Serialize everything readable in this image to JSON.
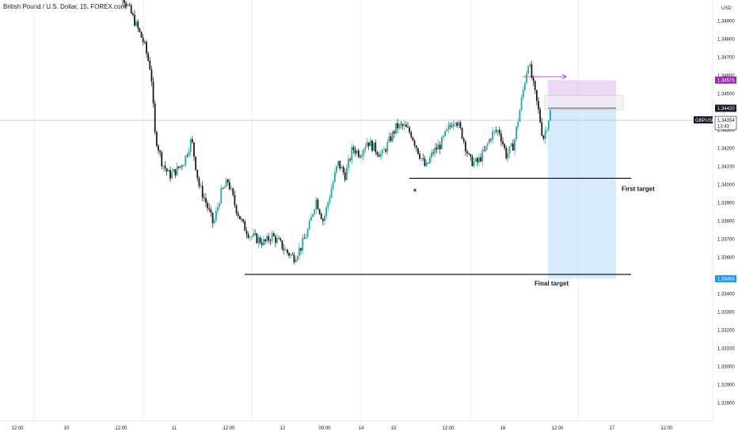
{
  "header": {
    "title": "British Pound / U.S. Dollar, 15, FOREX.com"
  },
  "colors": {
    "up": "#26a69a",
    "down": "#1a1a1a",
    "grid": "#e9ecef",
    "crosshair": "#b2b5be",
    "risk_zone": "#e1bee7",
    "target_zone": "#bbdefb",
    "level_line": "#000000",
    "tag_purple": "#9c27b0",
    "tag_black": "#131722",
    "tag_blue": "#2196f3"
  },
  "chart_data": {
    "type": "candlestick",
    "symbol": "GBPUSD",
    "timeframe": "15",
    "y_axis": {
      "unit": "USD",
      "range": [
        1.3269,
        1.3505
      ],
      "ticks": [
        "1.35000",
        "1.34900",
        "1.34800",
        "1.34700",
        "1.34600",
        "1.34500",
        "1.34300",
        "1.34200",
        "1.34100",
        "1.34000",
        "1.33900",
        "1.33800",
        "1.33700",
        "1.33600",
        "1.33400",
        "1.33300",
        "1.33200",
        "1.33100",
        "1.33000",
        "1.32900",
        "1.32800",
        "1.32700"
      ]
    },
    "x_axis": {
      "ticks": [
        "12:00",
        "10",
        "12:00",
        "11",
        "12:00",
        "12",
        "09:00",
        "14",
        "15",
        "12:00",
        "16",
        "12:00",
        "17",
        "12:00"
      ]
    },
    "price_path": [
      [
        0,
        1.3535
      ],
      [
        3,
        1.3505
      ],
      [
        6,
        1.3492
      ],
      [
        9,
        1.3478
      ],
      [
        11,
        1.3462
      ],
      [
        12,
        1.3428
      ],
      [
        14,
        1.3412
      ],
      [
        16,
        1.3405
      ],
      [
        18,
        1.3408
      ],
      [
        20,
        1.3413
      ],
      [
        22,
        1.3425
      ],
      [
        24,
        1.34
      ],
      [
        26,
        1.339
      ],
      [
        28,
        1.3378
      ],
      [
        30,
        1.3395
      ],
      [
        32,
        1.3402
      ],
      [
        34,
        1.3388
      ],
      [
        36,
        1.3378
      ],
      [
        38,
        1.3372
      ],
      [
        40,
        1.337
      ],
      [
        42,
        1.3368
      ],
      [
        44,
        1.3372
      ],
      [
        46,
        1.3368
      ],
      [
        48,
        1.3363
      ],
      [
        50,
        1.336
      ],
      [
        52,
        1.3366
      ],
      [
        54,
        1.3376
      ],
      [
        56,
        1.3392
      ],
      [
        58,
        1.338
      ],
      [
        60,
        1.3396
      ],
      [
        62,
        1.3412
      ],
      [
        64,
        1.3405
      ],
      [
        66,
        1.342
      ],
      [
        68,
        1.3417
      ],
      [
        70,
        1.3424
      ],
      [
        72,
        1.342
      ],
      [
        74,
        1.3416
      ],
      [
        76,
        1.3424
      ],
      [
        78,
        1.3432
      ],
      [
        80,
        1.3432
      ],
      [
        82,
        1.3428
      ],
      [
        84,
        1.3418
      ],
      [
        86,
        1.3409
      ],
      [
        88,
        1.3418
      ],
      [
        90,
        1.3422
      ],
      [
        92,
        1.343
      ],
      [
        94,
        1.3437
      ],
      [
        96,
        1.3427
      ],
      [
        98,
        1.3413
      ],
      [
        100,
        1.3412
      ],
      [
        102,
        1.3418
      ],
      [
        104,
        1.3428
      ],
      [
        106,
        1.343
      ],
      [
        108,
        1.3416
      ],
      [
        110,
        1.3422
      ],
      [
        112,
        1.3445
      ],
      [
        114,
        1.3468
      ],
      [
        116,
        1.3448
      ],
      [
        117,
        1.3438
      ],
      [
        118,
        1.3425
      ],
      [
        120,
        1.344
      ]
    ],
    "current_price": 1.34354,
    "levels": [
      {
        "price": 1.34035,
        "label": "First target"
      },
      {
        "price": 1.33507,
        "label": "Final target"
      }
    ],
    "position": {
      "side": "short",
      "entry": 1.3442,
      "stop": 1.34575,
      "target": 1.33483,
      "current_box_top": 1.3449
    },
    "price_tags": [
      {
        "price": 1.34575,
        "text": "1.34575",
        "style": "purple"
      },
      {
        "price": 1.3442,
        "text": "1.34420",
        "style": "black"
      },
      {
        "price": 1.34354,
        "text": "1.34354",
        "symbol": "GBPUSD",
        "countdown": "13:43",
        "style": "black"
      },
      {
        "price": 1.33483,
        "text": "1.33483",
        "style": "blue"
      }
    ],
    "grid": true
  }
}
